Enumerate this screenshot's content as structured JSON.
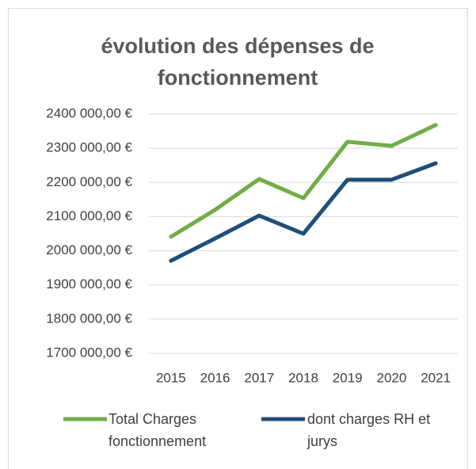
{
  "chart_data": {
    "type": "line",
    "title": "évolution des dépenses de fonctionnement",
    "categories": [
      "2015",
      "2016",
      "2017",
      "2018",
      "2019",
      "2020",
      "2021"
    ],
    "series": [
      {
        "name": "Total Charges fonctionnement",
        "color": "#70ad47",
        "values": [
          2041000,
          2120000,
          2210000,
          2154000,
          2319000,
          2307000,
          2368000
        ]
      },
      {
        "name": "dont charges RH et jurys",
        "color": "#1f4e79",
        "values": [
          1971000,
          2036000,
          2103000,
          2050000,
          2208000,
          2208000,
          2256000
        ]
      }
    ],
    "ylim": [
      1700000,
      2400000
    ],
    "yticks": [
      {
        "value": 1700000,
        "label": "1700 000,00 €"
      },
      {
        "value": 1800000,
        "label": "1800 000,00 €"
      },
      {
        "value": 1900000,
        "label": "1900 000,00 €"
      },
      {
        "value": 2000000,
        "label": "2000 000,00 €"
      },
      {
        "value": 2100000,
        "label": "2100 000,00 €"
      },
      {
        "value": 2200000,
        "label": "2200 000,00 €"
      },
      {
        "value": 2300000,
        "label": "2300 000,00 €"
      },
      {
        "value": 2400000,
        "label": "2400 000,00 €"
      }
    ],
    "grid": true,
    "legend": "bottom"
  }
}
